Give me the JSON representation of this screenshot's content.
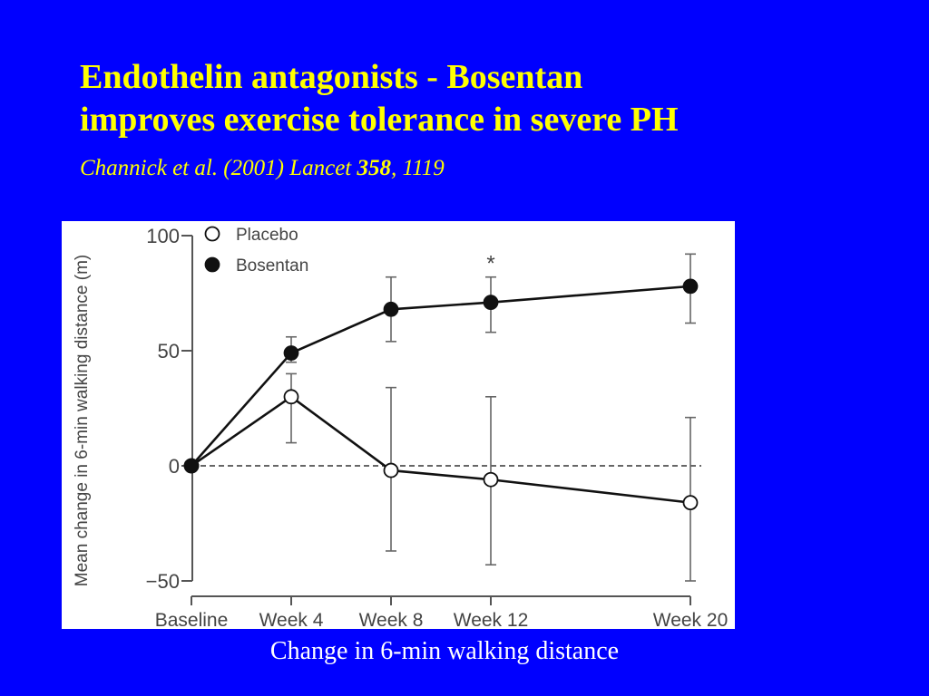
{
  "slide": {
    "title_line1": "Endothelin antagonists - Bosentan",
    "title_line2": "improves exercise tolerance in severe PH",
    "citation_prefix": "Channick et al. (2001) Lancet ",
    "citation_volume": "358",
    "citation_suffix": ", 1119",
    "caption": "Change in 6-min walking distance"
  },
  "colors": {
    "background": "#0000ff",
    "title": "#ffff00",
    "caption": "#ffffff"
  },
  "chart_data": {
    "type": "line",
    "title": "",
    "xlabel": "",
    "ylabel": "Mean change in 6-min walking distance (m)",
    "categories": [
      "Baseline",
      "Week 4",
      "Week 8",
      "Week 12",
      "Week 20"
    ],
    "week_positions": [
      0,
      4,
      8,
      12,
      20
    ],
    "ylim": [
      -50,
      100
    ],
    "yticks": [
      100,
      50,
      0,
      -50
    ],
    "ytick_labels": [
      "100",
      "50",
      "0",
      "−50"
    ],
    "grid": false,
    "reference_line": 0,
    "legend_position": "top-left",
    "series": [
      {
        "name": "Placebo",
        "marker": "open-circle",
        "values": [
          0,
          30,
          -2,
          -6,
          -16
        ],
        "err_low": [
          0,
          10,
          -37,
          -43,
          -50
        ],
        "err_high": [
          0,
          40,
          34,
          30,
          21
        ]
      },
      {
        "name": "Bosentan",
        "marker": "filled-circle",
        "values": [
          0,
          49,
          68,
          71,
          78
        ],
        "err_low": [
          0,
          45,
          54,
          58,
          62
        ],
        "err_high": [
          0,
          56,
          82,
          82,
          92
        ]
      }
    ],
    "annotations": [
      {
        "text": "*",
        "category": "Week 12",
        "y": 88
      }
    ]
  }
}
